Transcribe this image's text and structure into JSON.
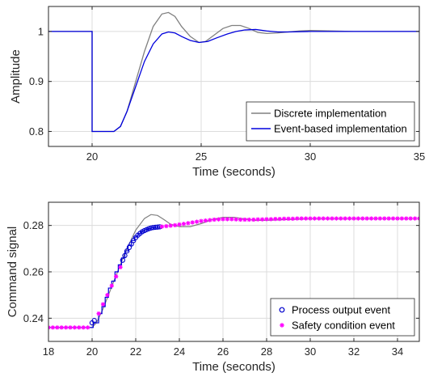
{
  "chart_data": [
    {
      "type": "line",
      "xlabel": "Time (seconds)",
      "ylabel": "Amplitude",
      "xlim": [
        18,
        35
      ],
      "ylim": [
        0.77,
        1.05
      ],
      "xticks": [
        20,
        25,
        30,
        35
      ],
      "yticks": [
        0.8,
        0.9,
        1
      ],
      "ytick_labels": [
        "0.8",
        "0.9",
        "1"
      ],
      "grid": true,
      "legend_position": "bottom-right",
      "series": [
        {
          "name": "Discrete implementation",
          "color": "#808080",
          "x": [
            18,
            20,
            20,
            21,
            21.3,
            21.6,
            22,
            22.4,
            22.8,
            23.2,
            23.5,
            23.8,
            24.1,
            24.5,
            24.9,
            25.2,
            25.6,
            26,
            26.4,
            26.8,
            27.2,
            27.6,
            28,
            28.5,
            29,
            29.5,
            30,
            31,
            32,
            33,
            35
          ],
          "y": [
            1,
            1,
            0.8,
            0.8,
            0.81,
            0.84,
            0.9,
            0.96,
            1.01,
            1.035,
            1.038,
            1.03,
            1.01,
            0.99,
            0.978,
            0.98,
            0.993,
            1.006,
            1.012,
            1.012,
            1.006,
            0.998,
            0.996,
            0.997,
            0.999,
            1.001,
            1.002,
            1.001,
            1.0,
            1.0,
            1.0
          ]
        },
        {
          "name": "Event-based implementation",
          "color": "#0000dd",
          "x": [
            18,
            20,
            20,
            21,
            21.3,
            21.6,
            22,
            22.4,
            22.8,
            23.2,
            23.5,
            23.8,
            24.1,
            24.5,
            24.9,
            25.3,
            25.7,
            26.2,
            26.6,
            27,
            27.5,
            28,
            28.5,
            29,
            30,
            31,
            32,
            33,
            35
          ],
          "y": [
            1,
            1,
            0.8,
            0.8,
            0.81,
            0.84,
            0.89,
            0.94,
            0.975,
            0.995,
            0.999,
            0.997,
            0.99,
            0.982,
            0.978,
            0.98,
            0.987,
            0.995,
            1.0,
            1.003,
            1.004,
            1.001,
            0.999,
            0.999,
            1.0,
            1.0,
            1.0,
            1.0,
            1.0
          ]
        }
      ]
    },
    {
      "type": "line",
      "xlabel": "Time (seconds)",
      "ylabel": "Command signal",
      "xlim": [
        18,
        35
      ],
      "ylim": [
        0.23,
        0.29
      ],
      "xticks": [
        18,
        20,
        22,
        24,
        26,
        28,
        30,
        32,
        34
      ],
      "yticks": [
        0.24,
        0.26,
        0.28
      ],
      "ytick_labels": [
        "0.24",
        "0.26",
        "0.28"
      ],
      "grid": true,
      "legend_position": "bottom-right",
      "lines": [
        {
          "color": "#808080",
          "x": [
            18,
            20,
            20.2,
            20.5,
            21,
            21.5,
            22,
            22.4,
            22.7,
            23,
            23.3,
            23.6,
            24,
            24.5,
            25,
            25.5,
            26,
            26.5,
            27,
            27.5,
            28,
            29,
            30,
            35
          ],
          "y": [
            0.236,
            0.236,
            0.238,
            0.244,
            0.256,
            0.268,
            0.278,
            0.283,
            0.2847,
            0.2843,
            0.2825,
            0.2805,
            0.2795,
            0.2795,
            0.2808,
            0.2825,
            0.2835,
            0.2835,
            0.2828,
            0.2822,
            0.2822,
            0.2826,
            0.2829,
            0.283
          ]
        },
        {
          "color": "#0000dd",
          "step": true,
          "x": [
            18,
            20,
            20.05,
            20.3,
            20.45,
            20.6,
            20.75,
            20.9,
            21.05,
            21.2,
            21.35,
            21.5,
            21.65,
            21.8,
            21.95,
            22.1,
            22.25,
            22.4,
            22.55,
            22.7,
            22.85,
            23.0,
            23.15,
            23.2
          ],
          "y": [
            0.236,
            0.236,
            0.238,
            0.242,
            0.245,
            0.249,
            0.253,
            0.256,
            0.26,
            0.263,
            0.266,
            0.269,
            0.2715,
            0.2735,
            0.275,
            0.2765,
            0.2775,
            0.2782,
            0.2787,
            0.279,
            0.2792,
            0.2793,
            0.2794,
            0.2794
          ]
        }
      ],
      "series": [
        {
          "name": "Process output event",
          "marker": "circle",
          "color": "#0000cc",
          "x": [
            20.0,
            20.1,
            21.4,
            21.5,
            21.6,
            21.7,
            21.8,
            21.9,
            22.0,
            22.1,
            22.2,
            22.3,
            22.4,
            22.5,
            22.6,
            22.7,
            22.8,
            22.9,
            23.0,
            23.1
          ],
          "y": [
            0.238,
            0.239,
            0.265,
            0.267,
            0.269,
            0.2705,
            0.272,
            0.2735,
            0.2748,
            0.2758,
            0.2766,
            0.2773,
            0.2778,
            0.2782,
            0.2786,
            0.2789,
            0.2791,
            0.2792,
            0.2793,
            0.2794
          ]
        },
        {
          "name": "Safety condition event",
          "marker": "asterisk",
          "color": "#ff00ff",
          "x": [
            18.0,
            18.2,
            18.4,
            18.6,
            18.8,
            19.0,
            19.2,
            19.4,
            19.6,
            19.8,
            20.3,
            20.5,
            20.7,
            20.9,
            21.1,
            21.3,
            23.2,
            23.4,
            23.6,
            23.8,
            24.0,
            24.2,
            24.4,
            24.6,
            24.8,
            25.0,
            25.2,
            25.4,
            25.6,
            25.8,
            26.0,
            26.2,
            26.4,
            26.6,
            26.8,
            27.0,
            27.2,
            27.4,
            27.6,
            27.8,
            28.0,
            28.2,
            28.4,
            28.6,
            28.8,
            29.0,
            29.2,
            29.4,
            29.6,
            29.8,
            30.0,
            30.2,
            30.4,
            30.6,
            30.8,
            31.0,
            31.2,
            31.4,
            31.6,
            31.8,
            32.0,
            32.2,
            32.4,
            32.6,
            32.8,
            33.0,
            33.2,
            33.4,
            33.6,
            33.8,
            34.0,
            34.2,
            34.4,
            34.6,
            34.8,
            35.0
          ],
          "y": [
            0.236,
            0.236,
            0.236,
            0.236,
            0.236,
            0.236,
            0.236,
            0.236,
            0.236,
            0.236,
            0.242,
            0.246,
            0.25,
            0.254,
            0.258,
            0.262,
            0.2795,
            0.2797,
            0.2799,
            0.2801,
            0.2804,
            0.2807,
            0.281,
            0.2813,
            0.2816,
            0.2819,
            0.2821,
            0.2823,
            0.2825,
            0.2826,
            0.2827,
            0.2827,
            0.2827,
            0.2826,
            0.2825,
            0.2825,
            0.2825,
            0.2825,
            0.2826,
            0.2826,
            0.2827,
            0.2827,
            0.2828,
            0.2828,
            0.2829,
            0.2829,
            0.2829,
            0.283,
            0.283,
            0.283,
            0.283,
            0.283,
            0.283,
            0.283,
            0.283,
            0.283,
            0.283,
            0.283,
            0.283,
            0.283,
            0.283,
            0.283,
            0.283,
            0.283,
            0.283,
            0.283,
            0.283,
            0.283,
            0.283,
            0.283,
            0.283,
            0.283,
            0.283,
            0.283,
            0.283,
            0.283
          ]
        }
      ]
    }
  ]
}
